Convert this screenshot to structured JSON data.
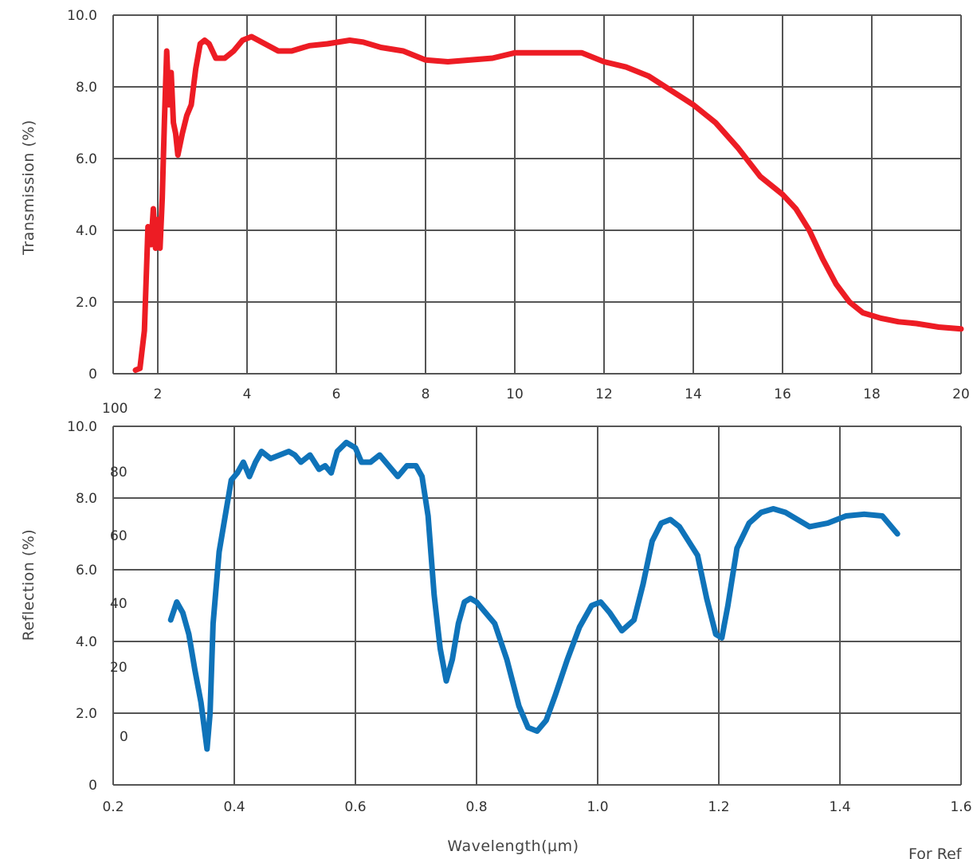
{
  "colors": {
    "transmission": "#ed1c24",
    "reflection": "#0f73b9",
    "grid": "#555555",
    "text": "#333333"
  },
  "x_axis_title": "Wavelength(μm)",
  "footnote": "For Ref",
  "stray_labels": [
    "100",
    "80",
    "60",
    "40",
    "20",
    "0"
  ],
  "chart_data": [
    {
      "type": "line",
      "title": "",
      "xlabel": "",
      "ylabel": "Transmission (%)",
      "xlim": [
        1,
        20
      ],
      "ylim": [
        0,
        10
      ],
      "grid": true,
      "xticks": [
        2,
        4,
        6,
        8,
        10,
        12,
        14,
        16,
        18,
        20
      ],
      "yticks": [
        "0",
        "2.0",
        "4.0",
        "6.0",
        "8.0",
        "10.0"
      ],
      "series": [
        {
          "color": "#ed1c24",
          "x": [
            1.5,
            1.6,
            1.7,
            1.78,
            1.85,
            1.9,
            1.95,
            2.0,
            2.05,
            2.1,
            2.15,
            2.2,
            2.25,
            2.3,
            2.35,
            2.4,
            2.45,
            2.55,
            2.65,
            2.75,
            2.85,
            2.95,
            3.05,
            3.15,
            3.3,
            3.5,
            3.7,
            3.9,
            4.1,
            4.4,
            4.7,
            5.0,
            5.4,
            5.8,
            6.3,
            6.6,
            7.0,
            7.5,
            8.0,
            8.5,
            9.0,
            9.5,
            10.0,
            10.5,
            11.0,
            11.5,
            12.0,
            12.5,
            13.0,
            13.5,
            14.0,
            14.5,
            15.0,
            15.5,
            16.0,
            16.3,
            16.6,
            16.9,
            17.2,
            17.5,
            17.8,
            18.2,
            18.6,
            19.0,
            19.5,
            20.0
          ],
          "y": [
            0.1,
            0.15,
            1.2,
            4.1,
            3.6,
            4.6,
            3.5,
            4.3,
            3.5,
            4.9,
            7.1,
            9.0,
            7.5,
            8.4,
            7.0,
            6.7,
            6.1,
            6.7,
            7.2,
            7.5,
            8.5,
            9.2,
            9.3,
            9.2,
            8.8,
            8.8,
            9.0,
            9.3,
            9.4,
            9.2,
            9.0,
            9.0,
            9.15,
            9.2,
            9.3,
            9.25,
            9.1,
            9.0,
            8.75,
            8.7,
            8.75,
            8.8,
            8.95,
            8.95,
            8.95,
            8.95,
            8.7,
            8.55,
            8.3,
            7.9,
            7.5,
            7.0,
            6.3,
            5.5,
            5.0,
            4.6,
            4.0,
            3.2,
            2.5,
            2.0,
            1.7,
            1.55,
            1.45,
            1.4,
            1.3,
            1.25
          ]
        }
      ]
    },
    {
      "type": "line",
      "title": "",
      "xlabel": "Wavelength(μm)",
      "ylabel": "Reflection (%)",
      "xlim": [
        0.2,
        1.6
      ],
      "ylim": [
        0,
        10
      ],
      "grid": true,
      "xticks": [
        "0.2",
        "0.4",
        "0.6",
        "0.8",
        "1.0",
        "1.2",
        "1.4",
        "1.6"
      ],
      "yticks": [
        "0",
        "2.0",
        "4.0",
        "6.0",
        "8.0",
        "10.0"
      ],
      "series": [
        {
          "color": "#0f73b9",
          "x": [
            0.295,
            0.305,
            0.315,
            0.325,
            0.335,
            0.345,
            0.355,
            0.36,
            0.365,
            0.375,
            0.385,
            0.395,
            0.405,
            0.415,
            0.425,
            0.435,
            0.445,
            0.46,
            0.475,
            0.49,
            0.5,
            0.51,
            0.525,
            0.54,
            0.55,
            0.56,
            0.57,
            0.585,
            0.6,
            0.61,
            0.625,
            0.64,
            0.655,
            0.67,
            0.685,
            0.7,
            0.71,
            0.72,
            0.73,
            0.74,
            0.75,
            0.76,
            0.77,
            0.78,
            0.79,
            0.8,
            0.815,
            0.83,
            0.85,
            0.87,
            0.885,
            0.9,
            0.915,
            0.93,
            0.95,
            0.97,
            0.99,
            1.005,
            1.02,
            1.04,
            1.06,
            1.075,
            1.09,
            1.105,
            1.12,
            1.135,
            1.15,
            1.165,
            1.18,
            1.195,
            1.205,
            1.215,
            1.23,
            1.25,
            1.27,
            1.29,
            1.31,
            1.33,
            1.35,
            1.38,
            1.41,
            1.44,
            1.47,
            1.495
          ],
          "y": [
            4.6,
            5.1,
            4.8,
            4.2,
            3.2,
            2.3,
            1.0,
            2.0,
            4.5,
            6.5,
            7.5,
            8.5,
            8.7,
            9.0,
            8.6,
            9.0,
            9.3,
            9.1,
            9.2,
            9.3,
            9.2,
            9.0,
            9.2,
            8.8,
            8.9,
            8.7,
            9.3,
            9.55,
            9.4,
            9.0,
            9.0,
            9.2,
            8.9,
            8.6,
            8.9,
            8.9,
            8.6,
            7.5,
            5.3,
            3.8,
            2.9,
            3.5,
            4.5,
            5.1,
            5.2,
            5.1,
            4.8,
            4.5,
            3.5,
            2.2,
            1.6,
            1.5,
            1.8,
            2.5,
            3.5,
            4.4,
            5.0,
            5.1,
            4.8,
            4.3,
            4.6,
            5.6,
            6.8,
            7.3,
            7.4,
            7.2,
            6.8,
            6.4,
            5.2,
            4.2,
            4.1,
            5.0,
            6.6,
            7.3,
            7.6,
            7.7,
            7.6,
            7.4,
            7.2,
            7.3,
            7.5,
            7.55,
            7.5,
            7.0
          ]
        }
      ]
    }
  ]
}
